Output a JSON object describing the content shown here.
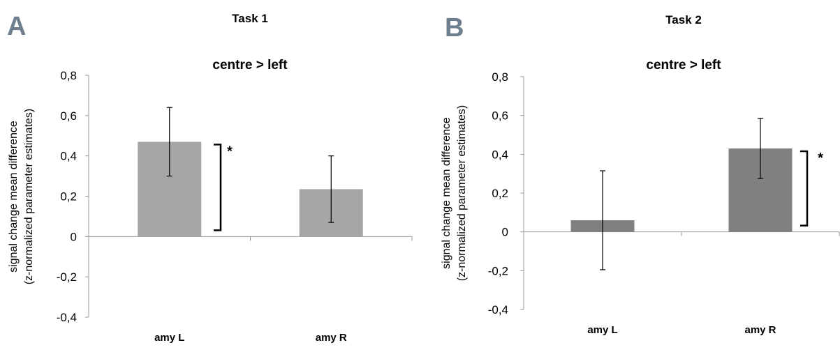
{
  "chart_data": [
    {
      "type": "bar",
      "panel_label": "A",
      "task_title": "Task 1",
      "title": "centre > left",
      "ylabel_lines": [
        "signal change mean difference",
        "(z-normalized parameter estimates)"
      ],
      "categories": [
        "amy L",
        "amy R"
      ],
      "series": [
        {
          "values": [
            0.47,
            0.235
          ],
          "error": [
            0.17,
            0.165
          ],
          "color": "#a6a6a6"
        }
      ],
      "ylim": [
        -0.4,
        0.8
      ],
      "yticks": [
        0.8,
        0.6,
        0.4,
        0.2,
        0,
        -0.2,
        -0.4
      ],
      "ytick_labels": [
        "0,8",
        "0,6",
        "0,4",
        "0,2",
        "0",
        "-0,2",
        "-0,4"
      ],
      "significance": {
        "category": "amy L",
        "label": "*"
      },
      "grid": false
    },
    {
      "type": "bar",
      "panel_label": "B",
      "task_title": "Task 2",
      "title": "centre > left",
      "ylabel_lines": [
        "signal change mean difference",
        "(z-normalized parameter estimates)"
      ],
      "categories": [
        "amy L",
        "amy R"
      ],
      "series": [
        {
          "values": [
            0.06,
            0.43
          ],
          "error": [
            0.255,
            0.155
          ],
          "color": "#808080"
        }
      ],
      "ylim": [
        -0.4,
        0.8
      ],
      "yticks": [
        0.8,
        0.6,
        0.4,
        0.2,
        0,
        -0.2,
        -0.4
      ],
      "ytick_labels": [
        "0,8",
        "0,6",
        "0,4",
        "0,2",
        "0",
        "-0,2",
        "-0,4"
      ],
      "significance": {
        "category": "amy R",
        "label": "*"
      },
      "grid": false
    }
  ]
}
